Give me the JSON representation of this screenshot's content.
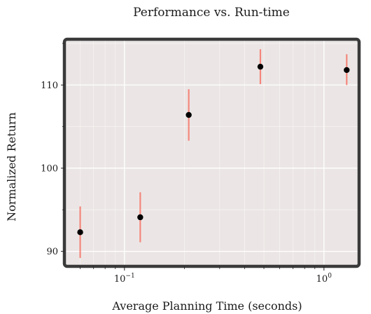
{
  "chart_data": {
    "type": "scatter",
    "title": "Performance vs. Run-time",
    "xlabel": "Average Planning Time (seconds)",
    "ylabel": "Normalized Return",
    "x_scale": "log",
    "xlim": [
      0.05,
      1.5
    ],
    "ylim": [
      88.2,
      115.5
    ],
    "y_ticks": [
      90,
      100,
      110
    ],
    "y_tick_labels": [
      "90",
      "100",
      "110"
    ],
    "x_ticks": [
      0.1,
      1
    ],
    "x_tick_labels": [
      {
        "base": "10",
        "exp": "−1"
      },
      {
        "base": "10",
        "exp": "0"
      }
    ],
    "grid": true,
    "points": [
      {
        "x": 0.06,
        "y": 92.3,
        "lo": 89.2,
        "hi": 95.4
      },
      {
        "x": 0.12,
        "y": 94.1,
        "lo": 91.1,
        "hi": 97.1
      },
      {
        "x": 0.21,
        "y": 106.4,
        "lo": 103.3,
        "hi": 109.5
      },
      {
        "x": 0.48,
        "y": 112.2,
        "lo": 110.1,
        "hi": 114.3
      },
      {
        "x": 1.3,
        "y": 111.8,
        "lo": 110.0,
        "hi": 113.7
      }
    ],
    "colors": {
      "panel": "#ebe6e5",
      "grid_major": "#ffffff",
      "grid_minor": "#f6f3f2",
      "frame": "#3a3a3a",
      "errorbar": "#f4877d",
      "point": "#000000"
    }
  }
}
